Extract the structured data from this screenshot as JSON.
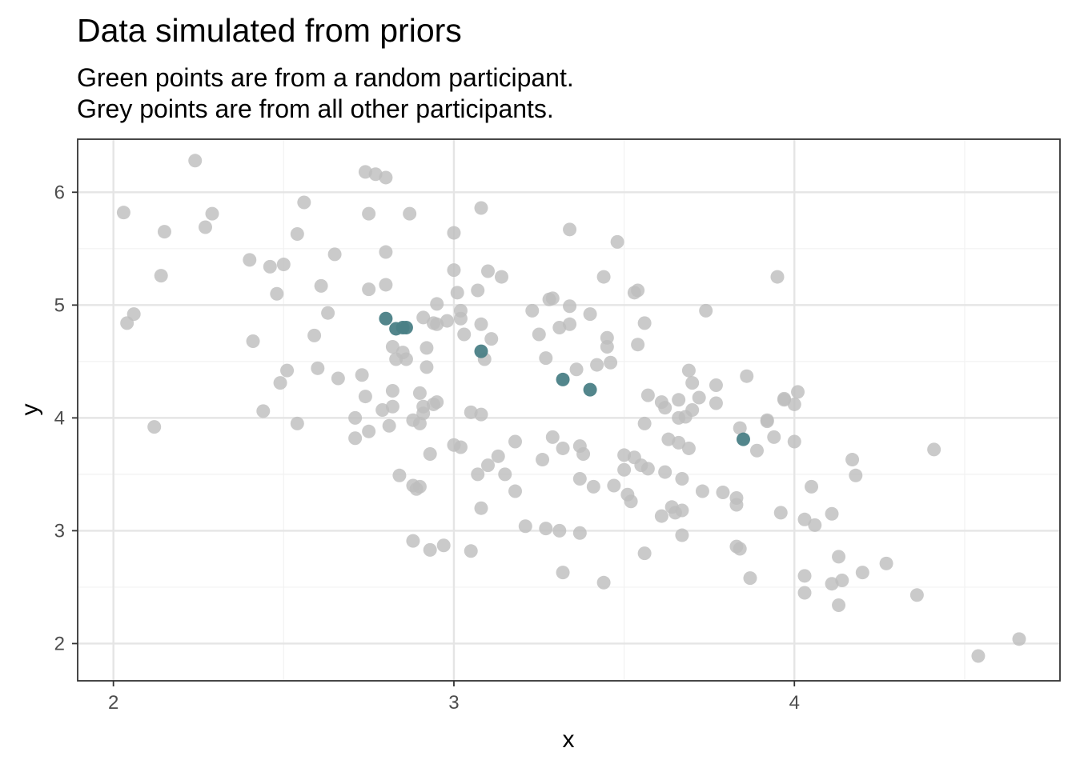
{
  "chart_data": {
    "type": "scatter",
    "title": "Data simulated from priors",
    "subtitle_lines": [
      "Green points are from a random participant.",
      "Grey points are from all other participants."
    ],
    "xlabel": "x",
    "ylabel": "y",
    "xlim": [
      1.895,
      4.78
    ],
    "ylim": [
      1.67,
      6.47
    ],
    "xticks": [
      2,
      3,
      4
    ],
    "yticks": [
      2,
      3,
      4,
      5,
      6
    ],
    "xtick_labels": [
      "2",
      "3",
      "4"
    ],
    "ytick_labels": [
      "2",
      "3",
      "4",
      "5",
      "6"
    ],
    "grid": true,
    "legend": "none",
    "colors": {
      "grey_points": "#bdbdbd",
      "green_points": "#4a7f86",
      "grid_major": "#e5e5e5",
      "grid_minor": "#f2f2f2",
      "panel_border": "#333333"
    },
    "series": [
      {
        "points": [
          [
            2.03,
            5.82
          ],
          [
            2.12,
            3.92
          ],
          [
            2.04,
            4.84
          ],
          [
            2.06,
            4.92
          ],
          [
            2.14,
            5.26
          ],
          [
            2.15,
            5.65
          ],
          [
            2.24,
            6.28
          ],
          [
            2.27,
            5.69
          ],
          [
            2.29,
            5.81
          ],
          [
            2.4,
            5.4
          ],
          [
            2.41,
            4.68
          ],
          [
            2.44,
            4.06
          ],
          [
            2.46,
            5.34
          ],
          [
            2.48,
            5.1
          ],
          [
            2.49,
            4.31
          ],
          [
            2.5,
            5.36
          ],
          [
            2.51,
            4.42
          ],
          [
            2.54,
            5.63
          ],
          [
            2.54,
            3.95
          ],
          [
            2.56,
            5.91
          ],
          [
            2.59,
            4.73
          ],
          [
            2.6,
            4.44
          ],
          [
            2.61,
            5.17
          ],
          [
            2.63,
            4.93
          ],
          [
            2.65,
            5.45
          ],
          [
            2.66,
            4.35
          ],
          [
            2.71,
            4.0
          ],
          [
            2.71,
            3.82
          ],
          [
            2.73,
            4.38
          ],
          [
            2.74,
            4.19
          ],
          [
            2.74,
            6.18
          ],
          [
            2.75,
            3.88
          ],
          [
            2.75,
            5.14
          ],
          [
            2.75,
            5.81
          ],
          [
            2.77,
            6.16
          ],
          [
            2.79,
            4.07
          ],
          [
            2.8,
            6.13
          ],
          [
            2.8,
            5.18
          ],
          [
            2.8,
            5.47
          ],
          [
            2.81,
            3.93
          ],
          [
            2.82,
            4.1
          ],
          [
            2.82,
            4.63
          ],
          [
            2.82,
            4.24
          ],
          [
            2.83,
            4.52
          ],
          [
            2.84,
            3.49
          ],
          [
            2.85,
            4.58
          ],
          [
            2.86,
            4.52
          ],
          [
            2.87,
            5.81
          ],
          [
            2.88,
            3.98
          ],
          [
            2.88,
            3.4
          ],
          [
            2.88,
            2.91
          ],
          [
            2.89,
            3.37
          ],
          [
            2.9,
            4.22
          ],
          [
            2.9,
            3.95
          ],
          [
            2.9,
            3.39
          ],
          [
            2.91,
            4.04
          ],
          [
            2.91,
            4.89
          ],
          [
            2.91,
            4.1
          ],
          [
            2.92,
            4.62
          ],
          [
            2.92,
            4.45
          ],
          [
            2.93,
            3.68
          ],
          [
            2.93,
            2.83
          ],
          [
            2.94,
            4.84
          ],
          [
            2.94,
            4.12
          ],
          [
            2.95,
            4.83
          ],
          [
            2.95,
            4.14
          ],
          [
            2.95,
            5.01
          ],
          [
            2.97,
            2.87
          ],
          [
            2.98,
            4.86
          ],
          [
            3.0,
            3.76
          ],
          [
            3.0,
            5.64
          ],
          [
            3.0,
            5.31
          ],
          [
            3.01,
            5.11
          ],
          [
            3.02,
            4.88
          ],
          [
            3.02,
            3.74
          ],
          [
            3.02,
            4.95
          ],
          [
            3.03,
            4.74
          ],
          [
            3.05,
            4.05
          ],
          [
            3.05,
            2.82
          ],
          [
            3.07,
            5.13
          ],
          [
            3.07,
            3.5
          ],
          [
            3.08,
            3.2
          ],
          [
            3.08,
            4.03
          ],
          [
            3.08,
            5.86
          ],
          [
            3.08,
            4.83
          ],
          [
            3.09,
            4.52
          ],
          [
            3.1,
            3.58
          ],
          [
            3.1,
            5.3
          ],
          [
            3.11,
            4.7
          ],
          [
            3.13,
            3.66
          ],
          [
            3.14,
            5.25
          ],
          [
            3.15,
            3.5
          ],
          [
            3.18,
            3.79
          ],
          [
            3.18,
            3.35
          ],
          [
            3.21,
            3.04
          ],
          [
            3.23,
            4.95
          ],
          [
            3.25,
            4.74
          ],
          [
            3.26,
            3.63
          ],
          [
            3.27,
            4.53
          ],
          [
            3.27,
            3.02
          ],
          [
            3.28,
            5.05
          ],
          [
            3.29,
            5.06
          ],
          [
            3.29,
            3.83
          ],
          [
            3.31,
            4.8
          ],
          [
            3.31,
            3.0
          ],
          [
            3.32,
            3.73
          ],
          [
            3.32,
            2.63
          ],
          [
            3.34,
            4.99
          ],
          [
            3.34,
            5.67
          ],
          [
            3.34,
            4.83
          ],
          [
            3.36,
            4.43
          ],
          [
            3.37,
            3.75
          ],
          [
            3.37,
            3.46
          ],
          [
            3.37,
            2.98
          ],
          [
            3.38,
            3.68
          ],
          [
            3.4,
            4.92
          ],
          [
            3.41,
            3.39
          ],
          [
            3.42,
            4.47
          ],
          [
            3.44,
            5.25
          ],
          [
            3.44,
            2.54
          ],
          [
            3.45,
            4.63
          ],
          [
            3.45,
            4.71
          ],
          [
            3.46,
            4.49
          ],
          [
            3.47,
            3.4
          ],
          [
            3.48,
            5.56
          ],
          [
            3.5,
            3.67
          ],
          [
            3.5,
            3.54
          ],
          [
            3.51,
            3.32
          ],
          [
            3.52,
            3.26
          ],
          [
            3.53,
            3.65
          ],
          [
            3.53,
            5.11
          ],
          [
            3.54,
            5.13
          ],
          [
            3.54,
            4.65
          ],
          [
            3.55,
            3.58
          ],
          [
            3.56,
            4.84
          ],
          [
            3.56,
            3.95
          ],
          [
            3.56,
            2.8
          ],
          [
            3.57,
            4.2
          ],
          [
            3.57,
            3.55
          ],
          [
            3.61,
            3.13
          ],
          [
            3.61,
            4.14
          ],
          [
            3.62,
            4.09
          ],
          [
            3.62,
            3.52
          ],
          [
            3.63,
            3.81
          ],
          [
            3.64,
            3.21
          ],
          [
            3.65,
            3.16
          ],
          [
            3.66,
            4.0
          ],
          [
            3.66,
            4.16
          ],
          [
            3.66,
            3.78
          ],
          [
            3.67,
            3.18
          ],
          [
            3.67,
            2.96
          ],
          [
            3.67,
            3.46
          ],
          [
            3.68,
            4.01
          ],
          [
            3.69,
            3.73
          ],
          [
            3.69,
            4.42
          ],
          [
            3.7,
            4.07
          ],
          [
            3.7,
            4.31
          ],
          [
            3.72,
            4.18
          ],
          [
            3.73,
            3.35
          ],
          [
            3.74,
            4.95
          ],
          [
            3.77,
            4.29
          ],
          [
            3.77,
            4.13
          ],
          [
            3.79,
            3.34
          ],
          [
            3.83,
            3.29
          ],
          [
            3.83,
            3.23
          ],
          [
            3.83,
            2.86
          ],
          [
            3.84,
            2.84
          ],
          [
            3.84,
            3.91
          ],
          [
            3.86,
            4.37
          ],
          [
            3.87,
            2.58
          ],
          [
            3.89,
            3.71
          ],
          [
            3.92,
            3.98
          ],
          [
            3.92,
            3.97
          ],
          [
            3.94,
            3.83
          ],
          [
            3.95,
            5.25
          ],
          [
            3.96,
            3.16
          ],
          [
            3.97,
            4.16
          ],
          [
            3.97,
            4.17
          ],
          [
            4.0,
            3.79
          ],
          [
            4.0,
            4.12
          ],
          [
            4.01,
            4.23
          ],
          [
            4.03,
            3.1
          ],
          [
            4.03,
            2.6
          ],
          [
            4.03,
            2.45
          ],
          [
            4.05,
            3.39
          ],
          [
            4.06,
            3.05
          ],
          [
            4.11,
            3.15
          ],
          [
            4.11,
            2.53
          ],
          [
            4.13,
            2.34
          ],
          [
            4.13,
            2.77
          ],
          [
            4.14,
            2.56
          ],
          [
            4.17,
            3.63
          ],
          [
            4.18,
            3.49
          ],
          [
            4.2,
            2.63
          ],
          [
            4.27,
            2.71
          ],
          [
            4.36,
            2.43
          ],
          [
            4.41,
            3.72
          ],
          [
            4.54,
            1.89
          ],
          [
            4.66,
            2.04
          ]
        ]
      },
      {
        "points": [
          [
            2.8,
            4.88
          ],
          [
            2.83,
            4.79
          ],
          [
            2.85,
            4.8
          ],
          [
            2.86,
            4.8
          ],
          [
            3.08,
            4.59
          ],
          [
            3.32,
            4.34
          ],
          [
            3.4,
            4.25
          ],
          [
            3.85,
            3.81
          ]
        ]
      }
    ]
  }
}
